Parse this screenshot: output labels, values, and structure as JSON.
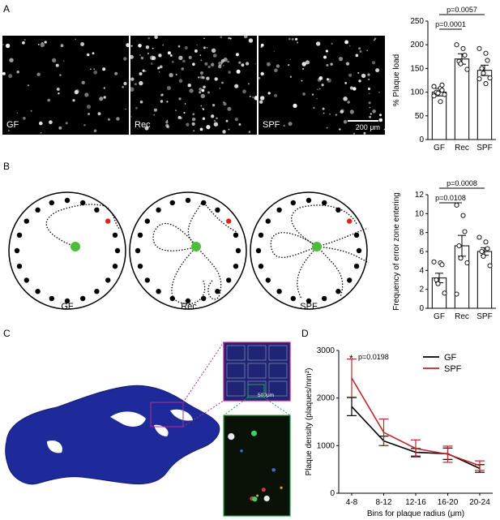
{
  "panel_labels": {
    "a": "A",
    "b": "B",
    "c": "C",
    "d": "D"
  },
  "panel_a": {
    "images": [
      {
        "label": "GF",
        "plaque_count": 60,
        "seed": 11
      },
      {
        "label": "Rec",
        "plaque_count": 140,
        "seed": 23
      },
      {
        "label": "SPF",
        "plaque_count": 90,
        "seed": 37
      }
    ],
    "scale_bar_label": "200 μm"
  },
  "panel_b": {
    "conditions": [
      "GF",
      "Rec",
      "SPF"
    ]
  },
  "panel_c": {
    "scale_bar_label": "500μm"
  },
  "chart_data": [
    {
      "type": "bar",
      "id": "A",
      "categories": [
        "GF",
        "Rec",
        "SPF"
      ],
      "values": [
        100,
        170,
        146
      ],
      "errors": [
        8,
        11,
        11
      ],
      "points": [
        [
          112,
          108,
          104,
          100,
          98,
          95,
          92,
          80,
          115
        ],
        [
          200,
          192,
          178,
          165,
          160,
          148
        ],
        [
          192,
          182,
          167,
          150,
          140,
          130,
          128,
          118
        ]
      ],
      "ylabel": "% Plaque load",
      "ylim": [
        0,
        250
      ],
      "yticks": [
        0,
        50,
        100,
        150,
        200,
        250
      ],
      "annotations": [
        {
          "text": "p=0.0057",
          "from": "GF",
          "to": "SPF"
        },
        {
          "text": "p=0.0001",
          "from": "GF",
          "to": "Rec"
        }
      ]
    },
    {
      "type": "bar",
      "id": "B",
      "categories": [
        "GF",
        "Rec",
        "SPF"
      ],
      "values": [
        3.2,
        6.6,
        6.0
      ],
      "errors": [
        0.5,
        1.1,
        0.4
      ],
      "points": [
        [
          4.9,
          4.8,
          4.6,
          3.0,
          2.6,
          1.6
        ],
        [
          10.9,
          9.8,
          8.1,
          6.6,
          5.3,
          4.8,
          1.5
        ],
        [
          7.5,
          7.0,
          6.3,
          6.0,
          5.5,
          4.5
        ]
      ],
      "ylabel": "Frequency of error zone entering",
      "ylim": [
        0,
        12
      ],
      "yticks": [
        0,
        2,
        4,
        6,
        8,
        10,
        12
      ],
      "annotations": [
        {
          "text": "p=0.0008",
          "from": "GF",
          "to": "SPF"
        },
        {
          "text": "p=0.0108",
          "from": "GF",
          "to": "Rec"
        }
      ]
    },
    {
      "type": "line",
      "id": "D",
      "categories": [
        "4-8",
        "8-12",
        "12-16",
        "16-20",
        "20-24"
      ],
      "series": [
        {
          "name": "GF",
          "color": "#000000",
          "values": [
            1820,
            1100,
            860,
            830,
            520
          ],
          "errors": [
            190,
            100,
            80,
            120,
            80
          ]
        },
        {
          "name": "SPF",
          "color": "#c0262c",
          "values": [
            2420,
            1280,
            940,
            820,
            580
          ],
          "errors": [
            400,
            280,
            180,
            170,
            100
          ]
        }
      ],
      "xlabel": "Bins for plaque radius (μm)",
      "ylabel": "Plaque density (plaques/mm²)",
      "ylim": [
        0,
        3000
      ],
      "yticks": [
        0,
        1000,
        2000,
        3000
      ],
      "annotations": [
        {
          "text": "p=0.0198",
          "marker": "*",
          "at": "4-8"
        }
      ]
    }
  ]
}
